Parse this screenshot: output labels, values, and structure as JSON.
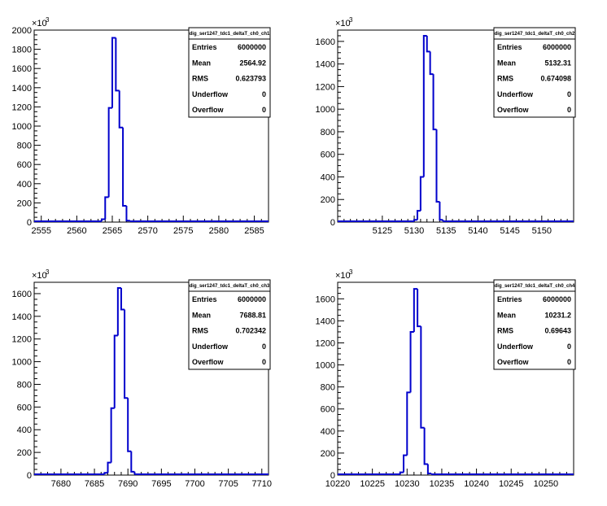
{
  "chart_data": [
    {
      "type": "histogram",
      "name": "dig_ser1247_tdc1_deltaT_ch0_ch1",
      "exponent_label": "×10",
      "exponent_power": "3",
      "xlim": [
        2554,
        2587
      ],
      "ylim": [
        0,
        2000
      ],
      "y_scale": 1000,
      "xticks": [
        2555,
        2560,
        2565,
        2570,
        2575,
        2580,
        2585
      ],
      "yticks": [
        0,
        200,
        400,
        600,
        800,
        1000,
        1200,
        1400,
        1600,
        1800,
        2000
      ],
      "bins": [
        {
          "x0": 2563.5,
          "x1": 2564.0,
          "value": 30
        },
        {
          "x0": 2564.0,
          "x1": 2564.5,
          "value": 260
        },
        {
          "x0": 2564.5,
          "x1": 2565.0,
          "value": 1190
        },
        {
          "x0": 2565.0,
          "x1": 2565.5,
          "value": 1920
        },
        {
          "x0": 2565.5,
          "x1": 2566.0,
          "value": 1370
        },
        {
          "x0": 2566.0,
          "x1": 2566.5,
          "value": 985
        },
        {
          "x0": 2566.5,
          "x1": 2567.0,
          "value": 170
        },
        {
          "x0": 2567.0,
          "x1": 2567.5,
          "value": 15
        }
      ],
      "stats": {
        "title": "dig_ser1247_tdc1_deltaT_ch0_ch1",
        "rows": [
          {
            "label": "Entries",
            "value": "6000000"
          },
          {
            "label": "Mean",
            "value": "2564.92"
          },
          {
            "label": "RMS",
            "value": "0.623793"
          },
          {
            "label": "Underflow",
            "value": "0"
          },
          {
            "label": "Overflow",
            "value": "0"
          }
        ]
      },
      "line_color": "#0000cc"
    },
    {
      "type": "histogram",
      "name": "dig_ser1247_tdc1_deltaT_ch0_ch2",
      "exponent_label": "×10",
      "exponent_power": "3",
      "xlim": [
        5118,
        5155
      ],
      "ylim": [
        0,
        1700
      ],
      "y_scale": 1000,
      "xticks": [
        5125,
        5130,
        5135,
        5140,
        5145,
        5150
      ],
      "yticks": [
        0,
        200,
        400,
        600,
        800,
        1000,
        1200,
        1400,
        1600
      ],
      "bins": [
        {
          "x0": 5130.0,
          "x1": 5130.5,
          "value": 20
        },
        {
          "x0": 5130.5,
          "x1": 5131.0,
          "value": 100
        },
        {
          "x0": 5131.0,
          "x1": 5131.5,
          "value": 400
        },
        {
          "x0": 5131.5,
          "x1": 5132.0,
          "value": 1650
        },
        {
          "x0": 5132.0,
          "x1": 5132.5,
          "value": 1510
        },
        {
          "x0": 5132.5,
          "x1": 5133.0,
          "value": 1310
        },
        {
          "x0": 5133.0,
          "x1": 5133.5,
          "value": 820
        },
        {
          "x0": 5133.5,
          "x1": 5134.0,
          "value": 180
        },
        {
          "x0": 5134.0,
          "x1": 5134.5,
          "value": 20
        }
      ],
      "stats": {
        "title": "dig_ser1247_tdc1_deltaT_ch0_ch2",
        "rows": [
          {
            "label": "Entries",
            "value": "6000000"
          },
          {
            "label": "Mean",
            "value": "5132.31"
          },
          {
            "label": "RMS",
            "value": "0.674098"
          },
          {
            "label": "Underflow",
            "value": "0"
          },
          {
            "label": "Overflow",
            "value": "0"
          }
        ]
      },
      "line_color": "#0000cc"
    },
    {
      "type": "histogram",
      "name": "dig_ser1247_tdc1_deltaT_ch0_ch3",
      "exponent_label": "×10",
      "exponent_power": "3",
      "xlim": [
        7676,
        7711
      ],
      "ylim": [
        0,
        1700
      ],
      "y_scale": 1000,
      "xticks": [
        7680,
        7685,
        7690,
        7695,
        7700,
        7705,
        7710
      ],
      "yticks": [
        0,
        200,
        400,
        600,
        800,
        1000,
        1200,
        1400,
        1600
      ],
      "bins": [
        {
          "x0": 7686.5,
          "x1": 7687.0,
          "value": 20
        },
        {
          "x0": 7687.0,
          "x1": 7687.5,
          "value": 110
        },
        {
          "x0": 7687.5,
          "x1": 7688.0,
          "value": 590
        },
        {
          "x0": 7688.0,
          "x1": 7688.5,
          "value": 1230
        },
        {
          "x0": 7688.5,
          "x1": 7689.0,
          "value": 1650
        },
        {
          "x0": 7689.0,
          "x1": 7689.5,
          "value": 1460
        },
        {
          "x0": 7689.5,
          "x1": 7690.0,
          "value": 680
        },
        {
          "x0": 7690.0,
          "x1": 7690.5,
          "value": 210
        },
        {
          "x0": 7690.5,
          "x1": 7691.0,
          "value": 30
        }
      ],
      "stats": {
        "title": "dig_ser1247_tdc1_deltaT_ch0_ch3",
        "rows": [
          {
            "label": "Entries",
            "value": "6000000"
          },
          {
            "label": "Mean",
            "value": "7688.81"
          },
          {
            "label": "RMS",
            "value": "0.702342"
          },
          {
            "label": "Underflow",
            "value": "0"
          },
          {
            "label": "Overflow",
            "value": "0"
          }
        ]
      },
      "line_color": "#0000cc"
    },
    {
      "type": "histogram",
      "name": "dig_ser1247_tdc1_deltaT_ch0_ch4",
      "exponent_label": "×10",
      "exponent_power": "3",
      "xlim": [
        10220,
        10254
      ],
      "ylim": [
        0,
        1750
      ],
      "y_scale": 1000,
      "xticks": [
        10220,
        10225,
        10230,
        10235,
        10240,
        10245,
        10250
      ],
      "yticks": [
        0,
        200,
        400,
        600,
        800,
        1000,
        1200,
        1400,
        1600
      ],
      "bins": [
        {
          "x0": 10229.0,
          "x1": 10229.5,
          "value": 25
        },
        {
          "x0": 10229.5,
          "x1": 10230.0,
          "value": 180
        },
        {
          "x0": 10230.0,
          "x1": 10230.5,
          "value": 750
        },
        {
          "x0": 10230.5,
          "x1": 10231.0,
          "value": 1300
        },
        {
          "x0": 10231.0,
          "x1": 10231.5,
          "value": 1690
        },
        {
          "x0": 10231.5,
          "x1": 10232.0,
          "value": 1350
        },
        {
          "x0": 10232.0,
          "x1": 10232.5,
          "value": 430
        },
        {
          "x0": 10232.5,
          "x1": 10233.0,
          "value": 100
        },
        {
          "x0": 10233.0,
          "x1": 10233.5,
          "value": 15
        }
      ],
      "stats": {
        "title": "dig_ser1247_tdc1_deltaT_ch0_ch4",
        "rows": [
          {
            "label": "Entries",
            "value": "6000000"
          },
          {
            "label": "Mean",
            "value": "10231.2"
          },
          {
            "label": "RMS",
            "value": "0.69643"
          },
          {
            "label": "Underflow",
            "value": "0"
          },
          {
            "label": "Overflow",
            "value": "0"
          }
        ]
      },
      "line_color": "#0000cc"
    }
  ]
}
